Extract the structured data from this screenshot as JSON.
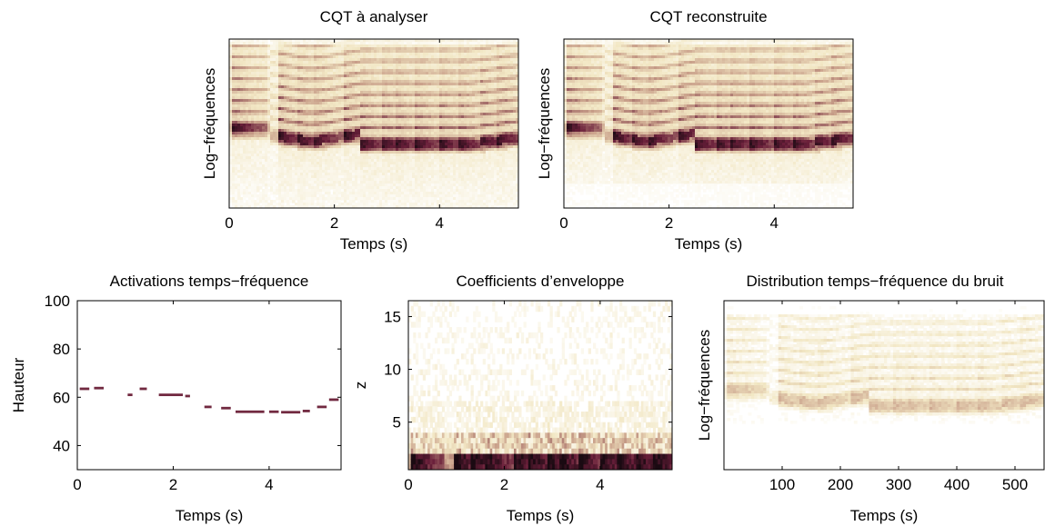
{
  "palette": {
    "low": "#ffffff",
    "mid1": "#f2e7c4",
    "mid2": "#c9a08a",
    "high": "#6a1f3a",
    "max": "#1a0a12"
  },
  "chart_data": [
    {
      "id": "cqt-input",
      "type": "heatmap",
      "title": "CQT à analyser",
      "xlabel": "Temps (s)",
      "ylabel": "Log−fréquences",
      "xlim": [
        0,
        5.5
      ],
      "xticks": [
        0,
        2,
        4
      ],
      "yticks": [],
      "variant": "cqt"
    },
    {
      "id": "cqt-reconstructed",
      "type": "heatmap",
      "title": "CQT reconstruite",
      "xlabel": "Temps (s)",
      "ylabel": "Log−fréquences",
      "xlim": [
        0,
        5.5
      ],
      "xticks": [
        0,
        2,
        4
      ],
      "yticks": [],
      "variant": "cqt"
    },
    {
      "id": "activations",
      "type": "heatmap",
      "title": "Activations temps−fréquence",
      "xlabel": "Temps (s)",
      "ylabel": "Hauteur",
      "xlim": [
        0,
        5.5
      ],
      "ylim": [
        30,
        100
      ],
      "xticks": [
        0,
        2,
        4
      ],
      "yticks": [
        40,
        60,
        80,
        100
      ],
      "variant": "activations",
      "segments": [
        {
          "t0": 0.05,
          "t1": 0.25,
          "pitch": 63.5
        },
        {
          "t0": 0.35,
          "t1": 0.55,
          "pitch": 63.8
        },
        {
          "t0": 1.05,
          "t1": 1.15,
          "pitch": 61
        },
        {
          "t0": 1.3,
          "t1": 1.45,
          "pitch": 63.5
        },
        {
          "t0": 1.7,
          "t1": 2.2,
          "pitch": 61
        },
        {
          "t0": 2.25,
          "t1": 2.35,
          "pitch": 60.5
        },
        {
          "t0": 2.65,
          "t1": 2.8,
          "pitch": 56
        },
        {
          "t0": 3.0,
          "t1": 3.2,
          "pitch": 55.5
        },
        {
          "t0": 3.3,
          "t1": 3.9,
          "pitch": 54
        },
        {
          "t0": 4.0,
          "t1": 4.2,
          "pitch": 54
        },
        {
          "t0": 4.25,
          "t1": 4.65,
          "pitch": 53.8
        },
        {
          "t0": 4.7,
          "t1": 4.85,
          "pitch": 54.3
        },
        {
          "t0": 5.0,
          "t1": 5.2,
          "pitch": 56
        },
        {
          "t0": 5.25,
          "t1": 5.45,
          "pitch": 59
        }
      ]
    },
    {
      "id": "envelope",
      "type": "heatmap",
      "title": "Coefficients d’enveloppe",
      "xlabel": "Temps (s)",
      "ylabel": "z",
      "xlim": [
        0,
        5.5
      ],
      "ylim": [
        0.5,
        16.5
      ],
      "xticks": [
        0,
        2,
        4
      ],
      "yticks": [
        5,
        10,
        15
      ],
      "variant": "envelope"
    },
    {
      "id": "noise",
      "type": "heatmap",
      "title": "Distribution temps−fréquence du bruit",
      "xlabel": "Temps (s)",
      "ylabel": "Log−fréquences",
      "xlim": [
        0,
        550
      ],
      "xticks": [
        100,
        200,
        300,
        400,
        500
      ],
      "yticks": [],
      "variant": "noise"
    }
  ]
}
